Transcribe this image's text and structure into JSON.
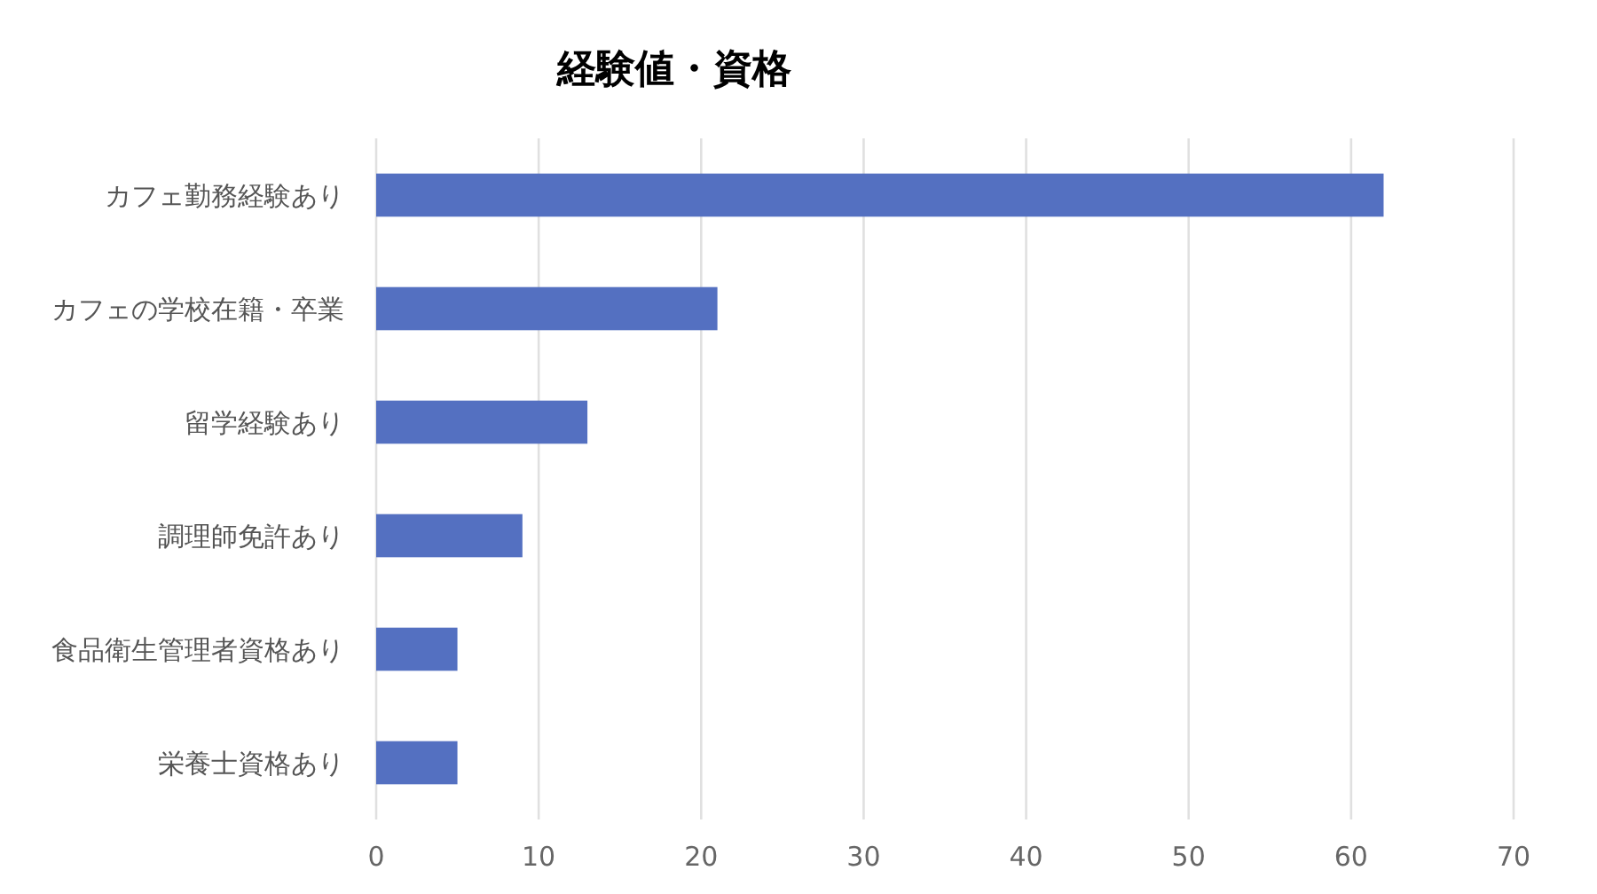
{
  "chart_data": {
    "type": "bar",
    "orientation": "horizontal",
    "title": "経験値・資格",
    "categories": [
      "カフェ勤務経験あり",
      "カフェの学校在籍・卒業",
      "留学経験あり",
      "調理師免許あり",
      "食品衛生管理者資格あり",
      "栄養士資格あり"
    ],
    "values": [
      62,
      21,
      13,
      9,
      5,
      5
    ],
    "color": "#5470c1",
    "xlim": [
      0,
      70
    ],
    "xticks": [
      0,
      10,
      20,
      30,
      40,
      50,
      60,
      70
    ],
    "grid": "x"
  }
}
